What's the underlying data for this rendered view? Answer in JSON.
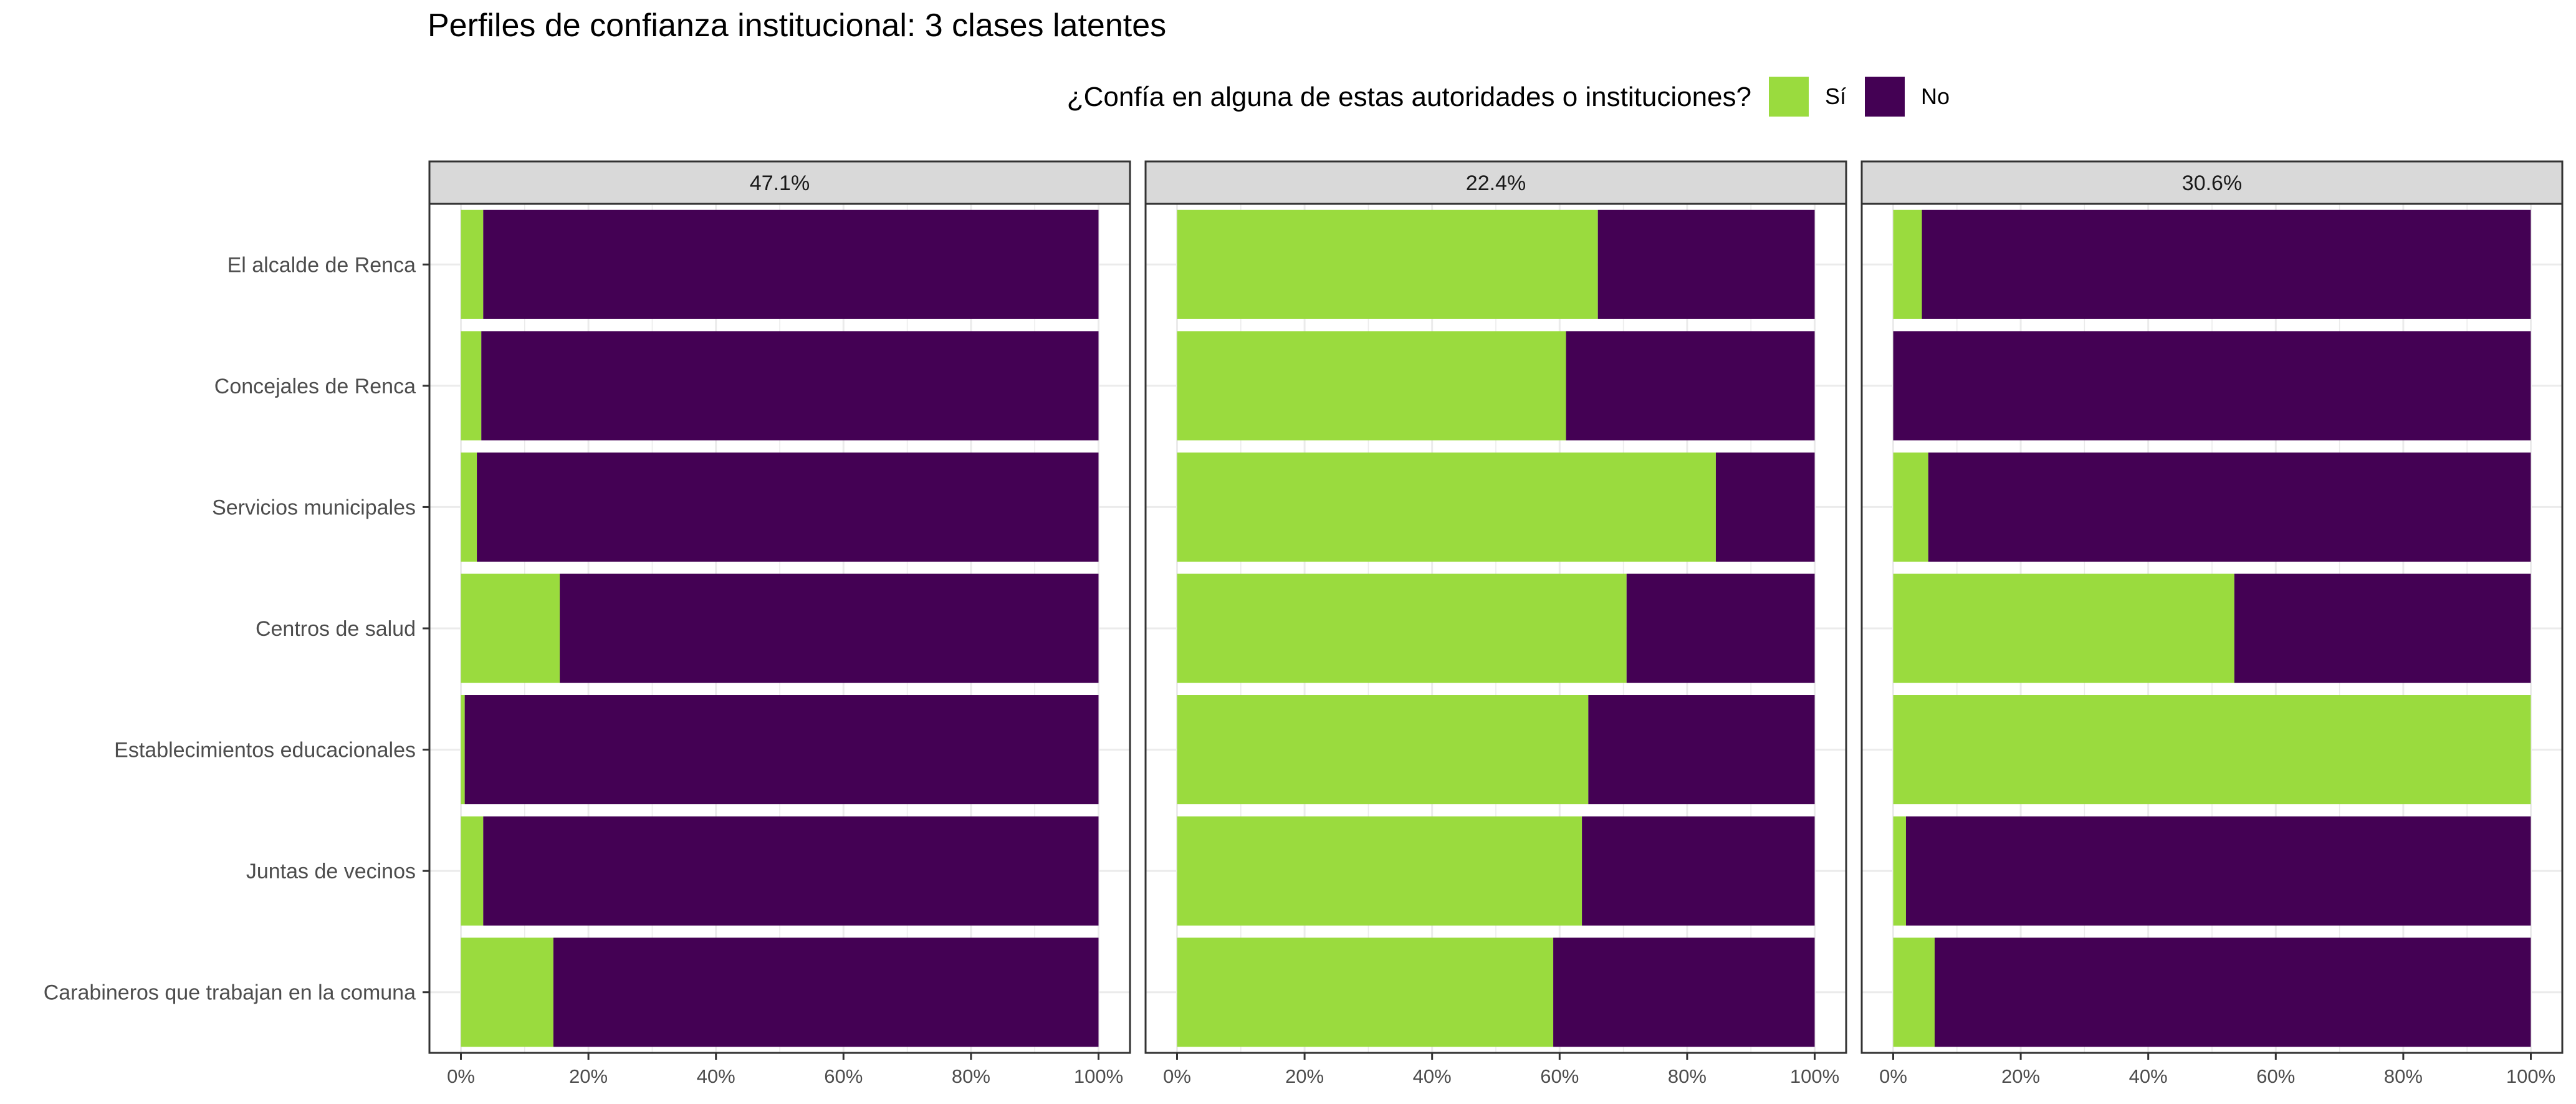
{
  "chart_data": {
    "type": "bar",
    "orientation": "horizontal",
    "stacked": true,
    "title": "Perfiles de confianza institucional: 3 clases latentes",
    "legend": {
      "title": "¿Confía en alguna de estas autoridades o instituciones?",
      "position": "top",
      "items": [
        {
          "label": "Sí",
          "color": "#9ADB3E"
        },
        {
          "label": "No",
          "color": "#440154"
        }
      ]
    },
    "categories": [
      "El alcalde de Renca",
      "Concejales de Renca",
      "Servicios municipales",
      "Centros de salud",
      "Establecimientos educacionales",
      "Juntas de vecinos",
      "Carabineros que trabajan en la comuna"
    ],
    "xlim": [
      0,
      1
    ],
    "x_ticks": [
      "0%",
      "20%",
      "40%",
      "60%",
      "80%",
      "100%"
    ],
    "grid": true,
    "panels": [
      {
        "label": "47.1%",
        "si": [
          0.035,
          0.032,
          0.025,
          0.155,
          0.006,
          0.035,
          0.145
        ]
      },
      {
        "label": "22.4%",
        "si": [
          0.66,
          0.61,
          0.845,
          0.705,
          0.645,
          0.635,
          0.59
        ]
      },
      {
        "label": "30.6%",
        "si": [
          0.045,
          0.0,
          0.055,
          0.535,
          1.0,
          0.02,
          0.065
        ]
      }
    ]
  }
}
